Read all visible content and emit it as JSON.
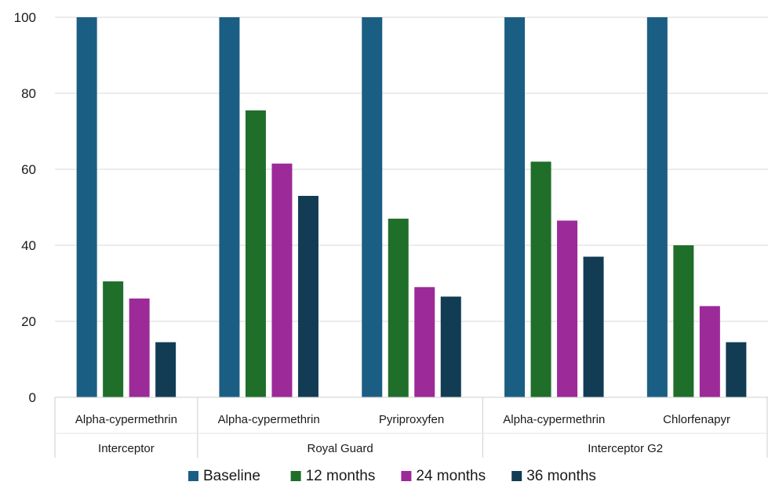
{
  "chart_data": {
    "type": "bar",
    "title": "",
    "xlabel": "",
    "ylabel": "",
    "ylim": [
      0,
      100
    ],
    "yticks": [
      "0",
      "20",
      "40",
      "60",
      "80",
      "100"
    ],
    "grid": true,
    "legend_position": "bottom",
    "groups": [
      {
        "name": "Interceptor",
        "categories": [
          "Alpha-cypermethrin"
        ]
      },
      {
        "name": "Royal Guard",
        "categories": [
          "Alpha-cypermethrin",
          "Pyriproxyfen"
        ]
      },
      {
        "name": "Interceptor G2",
        "categories": [
          "Alpha-cypermethrin",
          "Chlorfenapyr"
        ]
      }
    ],
    "categories": [
      "Alpha-cypermethrin",
      "Alpha-cypermethrin",
      "Pyriproxyfen",
      "Alpha-cypermethrin",
      "Chlorfenapyr"
    ],
    "series": [
      {
        "name": "Baseline",
        "color": "#1b5e84",
        "values": [
          100,
          100,
          100,
          100,
          100
        ]
      },
      {
        "name": "12 months",
        "color": "#1f6e2a",
        "values": [
          30.5,
          75.5,
          47,
          62,
          40
        ]
      },
      {
        "name": "24 months",
        "color": "#9c2a98",
        "values": [
          26,
          61.5,
          29,
          46.5,
          24
        ]
      },
      {
        "name": "36 months",
        "color": "#123c54",
        "values": [
          14.5,
          53,
          26.5,
          37,
          14.5
        ]
      }
    ]
  }
}
